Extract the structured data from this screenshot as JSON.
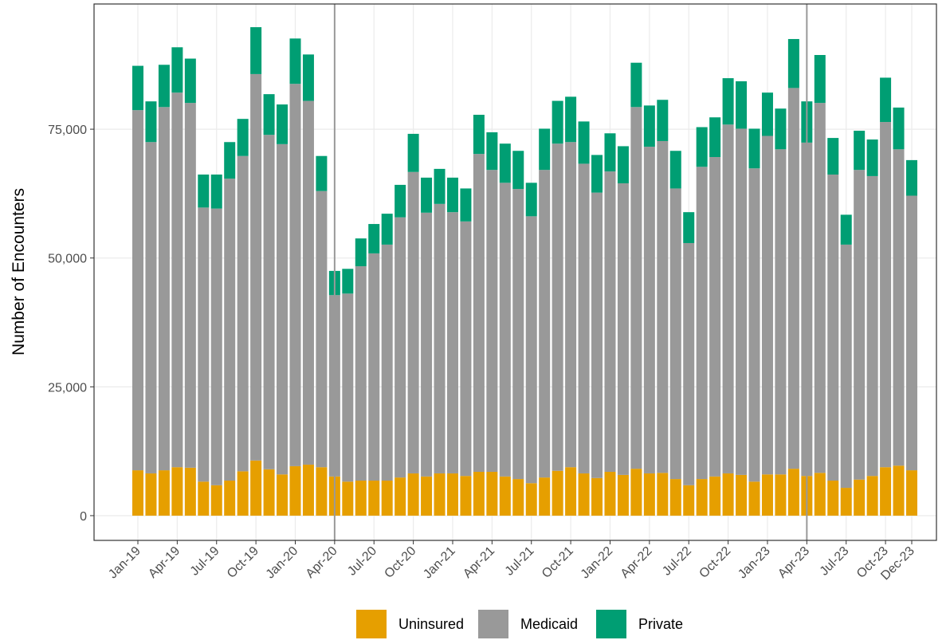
{
  "chart_data": {
    "type": "stacked-bar",
    "y_label": "Number of Encounters",
    "categories": [
      "Jan-19",
      null,
      null,
      "Apr-19",
      null,
      null,
      "Jul-19",
      null,
      null,
      "Oct-19",
      null,
      null,
      "Jan-20",
      null,
      null,
      "Apr-20",
      null,
      null,
      "Jul-20",
      null,
      null,
      "Oct-20",
      null,
      null,
      "Jan-21",
      null,
      null,
      "Apr-21",
      null,
      null,
      "Jul-21",
      null,
      null,
      "Oct-21",
      null,
      null,
      "Jan-22",
      null,
      null,
      "Apr-22",
      null,
      null,
      "Jul-22",
      null,
      null,
      "Oct-22",
      null,
      null,
      "Jan-23",
      null,
      null,
      "Apr-23",
      null,
      null,
      "Jul-23",
      null,
      null,
      "Oct-23",
      null,
      "Dec-23"
    ],
    "series": [
      {
        "name": "Uninsured",
        "color": "#E69F00",
        "values": [
          8800,
          8200,
          8800,
          9400,
          9300,
          6600,
          5900,
          6800,
          8600,
          10700,
          9000,
          8000,
          9600,
          9900,
          9400,
          7600,
          6600,
          6800,
          6800,
          6800,
          7400,
          8200,
          7600,
          8200,
          8200,
          7700,
          8500,
          8500,
          7600,
          7100,
          6300,
          7400,
          8700,
          9400,
          8200,
          7300,
          8500,
          7900,
          9100,
          8200,
          8300,
          7100,
          5900,
          7100,
          7600,
          8200,
          7900,
          6600,
          8000,
          8000,
          9100,
          7700,
          8300,
          6800,
          5400,
          7000,
          7700,
          9400,
          9700,
          8800
        ]
      },
      {
        "name": "Medicaid",
        "color": "#999999",
        "values": [
          69900,
          64300,
          70500,
          72700,
          70800,
          53200,
          53700,
          58600,
          61200,
          75000,
          64900,
          64100,
          74200,
          70600,
          53600,
          35200,
          36500,
          41600,
          44100,
          45800,
          50500,
          58500,
          51200,
          52300,
          50700,
          49400,
          61700,
          58600,
          57000,
          56300,
          51800,
          59700,
          63500,
          63100,
          60100,
          55400,
          58300,
          56600,
          70200,
          63400,
          64400,
          56400,
          47000,
          60600,
          62000,
          67700,
          67200,
          60800,
          65700,
          63100,
          73900,
          64700,
          71800,
          59400,
          47200,
          60100,
          58200,
          67000,
          61400,
          53300
        ]
      },
      {
        "name": "Private",
        "color": "#009E73",
        "values": [
          8600,
          7900,
          8200,
          8800,
          8600,
          6400,
          6600,
          7100,
          7200,
          9100,
          7900,
          7700,
          8800,
          9000,
          6800,
          4700,
          4800,
          5400,
          5700,
          6000,
          6300,
          7400,
          6800,
          6800,
          6700,
          6400,
          7600,
          7300,
          7600,
          7400,
          6500,
          8000,
          8300,
          8800,
          8200,
          7300,
          7400,
          7200,
          8600,
          8000,
          8000,
          7300,
          6000,
          7700,
          7700,
          9000,
          9200,
          7700,
          8400,
          7900,
          9500,
          8000,
          9300,
          7100,
          5800,
          7600,
          7100,
          8600,
          8100,
          6900
        ]
      }
    ],
    "ylim": [
      -4800,
      99300
    ],
    "yticks": [
      {
        "value": 0,
        "label": "0"
      },
      {
        "value": 25000,
        "label": "25,000"
      },
      {
        "value": 50000,
        "label": "50,000"
      },
      {
        "value": 75000,
        "label": "75,000"
      }
    ],
    "vline_categories": [
      15,
      51
    ],
    "grid": true,
    "legend": "bottom"
  }
}
